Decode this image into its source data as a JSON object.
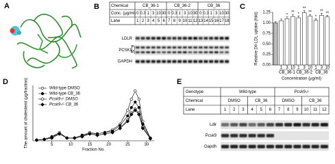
{
  "panels": {
    "a": "A",
    "b": "B",
    "c": "C",
    "d": "D",
    "e": "E"
  },
  "blot_b": {
    "row_labels": {
      "chemical": "Chemical",
      "conc": "Conc. (μg/ml)",
      "lane": "Lane"
    },
    "chemicals": [
      "CB_36-1",
      "CB_36-2",
      "CB_36"
    ],
    "concentrations": [
      0,
      0.3,
      1,
      3,
      10,
      30,
      0,
      0.3,
      1,
      3,
      10,
      30,
      0,
      0.3,
      1,
      3,
      10,
      30
    ],
    "lanes": [
      1,
      2,
      3,
      4,
      5,
      6,
      7,
      8,
      9,
      10,
      11,
      12,
      13,
      14,
      15,
      16,
      17,
      18
    ],
    "bands": [
      "LDLR",
      "PCSK9",
      "GAPDH"
    ],
    "pcsk9_forms": [
      "P",
      "M"
    ]
  },
  "blot_e": {
    "row_labels": {
      "genotype": "Genotype",
      "chemical": "Chemical",
      "lane": "Lane"
    },
    "genotypes": [
      "Wild-type",
      "Pcsk9-/-"
    ],
    "chemicals": [
      "DMSO",
      "CB_36",
      "DMSO",
      "CB_36"
    ],
    "lanes": [
      1,
      2,
      3,
      4,
      5,
      6,
      7,
      8,
      9,
      10,
      11,
      12
    ],
    "bands": [
      "Ldlr",
      "Pcsk9",
      "Gapdh"
    ]
  },
  "chart_data": [
    {
      "type": "bar",
      "y_label": "Relative DiI-LDL uptake (fold)",
      "x_label": "Concentration (μg/ml)",
      "categories": [
        null,
        "1",
        "3",
        "10",
        "1",
        "3",
        "10",
        "1",
        "3",
        "10"
      ],
      "group_labels": [
        "CB_36-1",
        "CB_36-2",
        "CB_36"
      ],
      "values": [
        1.0,
        1.05,
        1.1,
        1.15,
        1.12,
        1.24,
        1.16,
        1.06,
        1.18,
        1.14
      ],
      "errors": [
        0.03,
        0.04,
        0.04,
        0.05,
        0.04,
        0.05,
        0.04,
        0.04,
        0.05,
        0.04
      ],
      "significance": [
        null,
        null,
        "*",
        "**",
        "*",
        "**",
        "**",
        "*",
        "**",
        "**"
      ],
      "colors": [
        "#bbbbbb",
        "#ffffff",
        "#ffffff",
        "#ffffff",
        "#ffffff",
        "#ffffff",
        "#ffffff",
        "#ffffff",
        "#ffffff",
        "#ffffff"
      ],
      "ylim": [
        0,
        1.25
      ],
      "yticks": [
        {
          "value": 0,
          "label": "0.00"
        },
        {
          "value": 0.25,
          "label": "0.25"
        },
        {
          "value": 0.5,
          "label": "0.50"
        },
        {
          "value": 0.75,
          "label": "0.75"
        },
        {
          "value": 1,
          "label": "1.00"
        },
        {
          "value": 1.25,
          "label": "1.25"
        }
      ]
    },
    {
      "type": "line",
      "y_label": "The amount of cholesterol (μg/fraction)",
      "x_label": "Fraction No.",
      "x": [
        1,
        3,
        5,
        7,
        9,
        11,
        13,
        15,
        17,
        19,
        21,
        23,
        25,
        26,
        27,
        28,
        29,
        31
      ],
      "xlim": [
        0,
        32
      ],
      "xticks": [
        5,
        10,
        15,
        20,
        25,
        30
      ],
      "ylim": [
        0,
        40
      ],
      "series": [
        {
          "name": "Wild-type DMSO",
          "color": "#000000",
          "marker": "circle-open",
          "values": [
            0.5,
            1,
            3,
            6,
            2,
            2,
            4,
            6,
            5,
            6,
            8,
            12,
            22,
            30,
            36,
            30,
            14,
            2
          ]
        },
        {
          "name": "Wild-type CB_36",
          "color": "#000000",
          "marker": "circle-filled",
          "values": [
            0.5,
            1,
            3,
            5,
            2,
            2,
            4,
            5,
            5,
            6,
            7,
            11,
            18,
            24,
            28,
            24,
            12,
            2
          ]
        },
        {
          "name": "Pcsk9-/- DMSO",
          "color": "#000000",
          "marker": "diamond-open",
          "values": [
            0.5,
            1,
            2,
            5,
            2,
            2,
            3,
            5,
            4,
            5,
            6,
            9,
            15,
            20,
            23,
            20,
            10,
            1.5
          ]
        },
        {
          "name": "Pcsk9-/- CB_36",
          "color": "#000000",
          "marker": "diamond-filled",
          "values": [
            0.5,
            1,
            2,
            5,
            2,
            2,
            3,
            5,
            4,
            5,
            6,
            9,
            14,
            19,
            22,
            19,
            9,
            1.5
          ]
        }
      ]
    }
  ]
}
